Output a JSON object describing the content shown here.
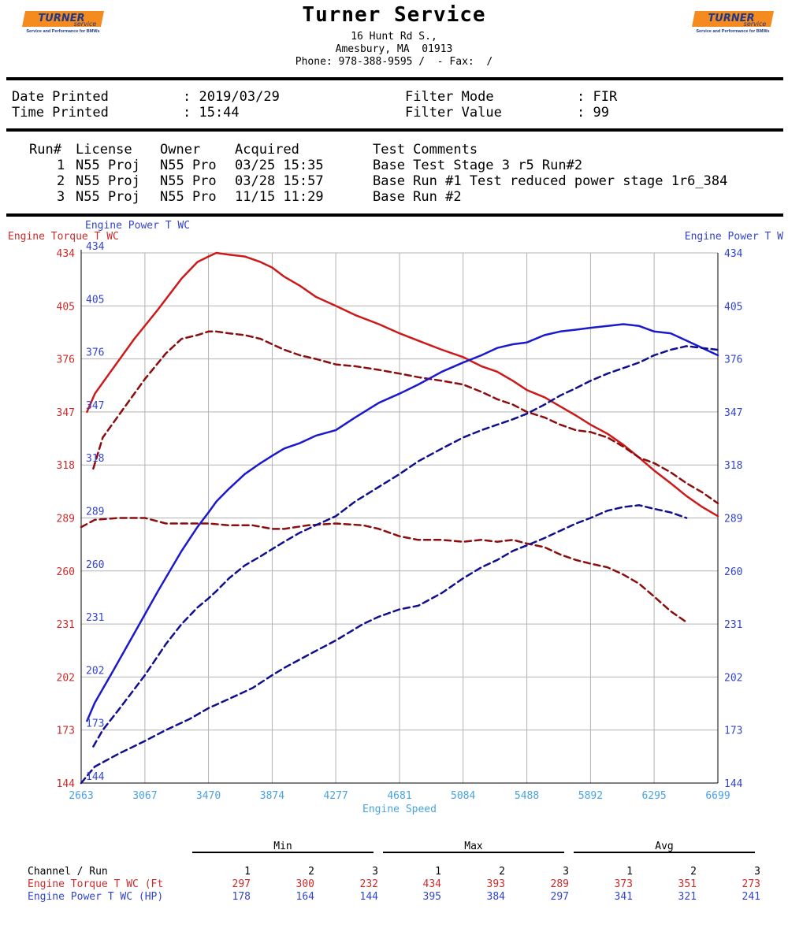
{
  "header": {
    "title": "Turner Service",
    "address_line1": "16 Hunt Rd S.,",
    "address_line2": "Amesbury, MA  01913",
    "phone_line": "Phone: 978-388-9595 /  - Fax:  /",
    "logo_text": "TURNER service",
    "logo_tagline": "Service and Performance for BMWs"
  },
  "info": {
    "date_label": "Date Printed",
    "date_value": ": 2019/03/29",
    "time_label": "Time Printed",
    "time_value": ": 15:44",
    "filter_mode_label": "Filter Mode",
    "filter_mode_value": ": FIR",
    "filter_value_label": "Filter Value",
    "filter_value_value": ": 99"
  },
  "runs": {
    "headers": [
      "Run#",
      "License",
      "Owner",
      "Acquired",
      "Test Comments"
    ],
    "rows": [
      {
        "run": "1",
        "license": "N55 Proj",
        "owner": "N55 Pro",
        "acquired": "03/25 15:35",
        "comments": "Base Test Stage 3 r5 Run#2"
      },
      {
        "run": "2",
        "license": "N55 Proj",
        "owner": "N55 Pro",
        "acquired": "03/28 15:57",
        "comments": "Base Run #1 Test reduced power stage 1r6_384"
      },
      {
        "run": "3",
        "license": "N55 Proj",
        "owner": "N55 Pro",
        "acquired": "11/15 11:29",
        "comments": "Base Run #2"
      }
    ]
  },
  "colors": {
    "torque": "#cc1a1a",
    "torque_dark": "#8b0d0d",
    "power": "#1a1acc",
    "power_dark": "#10108f",
    "torque_text": "#cc2b2b",
    "power_text": "#3344cc",
    "xaxis_text": "#4aa3e0",
    "grid": "#b3b3b3",
    "logo_orange": "#f58a1f",
    "logo_blue": "#1a3a8f"
  },
  "chart_data": {
    "type": "line",
    "xlabel": "Engine Speed",
    "y_left_label": "Engine Torque T WC",
    "y_right_label": "Engine Power T W",
    "y_right_label_top": "Engine Power T WC",
    "xlim": [
      2663,
      6699
    ],
    "ylim": [
      144,
      434
    ],
    "x_ticks": [
      "2663",
      "3067",
      "3470",
      "3874",
      "4277",
      "4681",
      "5084",
      "5488",
      "5892",
      "6295",
      "6699"
    ],
    "y_ticks": [
      "434",
      "405",
      "376",
      "347",
      "318",
      "289",
      "260",
      "231",
      "202",
      "173",
      "144"
    ],
    "grid": true,
    "series": [
      {
        "channel": "torque",
        "run": 1,
        "style": "solid",
        "x": [
          2700,
          2750,
          2850,
          3000,
          3150,
          3300,
          3400,
          3470,
          3520,
          3600,
          3700,
          3800,
          3874,
          3950,
          4050,
          4150,
          4277,
          4400,
          4550,
          4681,
          4800,
          4950,
          5084,
          5200,
          5300,
          5400,
          5488,
          5600,
          5700,
          5800,
          5892,
          6000,
          6100,
          6200,
          6295,
          6400,
          6500,
          6600,
          6699
        ],
        "y": [
          347,
          357,
          369,
          387,
          403,
          420,
          429,
          432,
          434,
          433,
          432,
          429,
          426,
          421,
          416,
          410,
          405,
          400,
          395,
          390,
          386,
          381,
          377,
          372,
          369,
          364,
          359,
          355,
          350,
          345,
          340,
          335,
          329,
          322,
          315,
          308,
          301,
          295,
          290
        ]
      },
      {
        "channel": "torque",
        "run": 2,
        "style": "dashed",
        "x": [
          2740,
          2800,
          2900,
          3067,
          3200,
          3300,
          3400,
          3470,
          3520,
          3600,
          3700,
          3800,
          3874,
          3950,
          4050,
          4150,
          4277,
          4400,
          4550,
          4681,
          4800,
          4950,
          5084,
          5200,
          5300,
          5400,
          5488,
          5600,
          5700,
          5800,
          5892,
          6000,
          6100,
          6200,
          6295,
          6400,
          6500,
          6600,
          6699
        ],
        "y": [
          316,
          333,
          345,
          365,
          379,
          387,
          389,
          391,
          391,
          390,
          389,
          387,
          384,
          381,
          378,
          376,
          373,
          372,
          370,
          368,
          366,
          364,
          362,
          358,
          354,
          351,
          347,
          344,
          340,
          337,
          336,
          333,
          328,
          322,
          319,
          314,
          308,
          303,
          297
        ]
      },
      {
        "channel": "torque",
        "run": 3,
        "style": "dashed",
        "x": [
          2663,
          2750,
          2900,
          3067,
          3200,
          3350,
          3470,
          3600,
          3750,
          3874,
          3950,
          4100,
          4277,
          4450,
          4550,
          4681,
          4800,
          4950,
          5084,
          5200,
          5300,
          5400,
          5488,
          5600,
          5700,
          5800,
          5892,
          6000,
          6100,
          6200,
          6295,
          6400,
          6500
        ],
        "y": [
          284,
          288,
          289,
          289,
          286,
          286,
          286,
          285,
          285,
          283,
          283,
          285,
          286,
          285,
          283,
          279,
          277,
          277,
          276,
          277,
          276,
          277,
          275,
          273,
          269,
          266,
          264,
          262,
          258,
          253,
          246,
          238,
          232
        ]
      },
      {
        "channel": "power",
        "run": 1,
        "style": "solid",
        "x": [
          2700,
          2750,
          2850,
          3000,
          3150,
          3300,
          3400,
          3470,
          3520,
          3600,
          3700,
          3800,
          3874,
          3950,
          4050,
          4150,
          4277,
          4400,
          4550,
          4681,
          4800,
          4950,
          5084,
          5200,
          5300,
          5400,
          5488,
          5600,
          5700,
          5800,
          5892,
          6000,
          6100,
          6200,
          6295,
          6400,
          6500,
          6600,
          6699
        ],
        "y": [
          178,
          188,
          203,
          226,
          249,
          271,
          284,
          292,
          298,
          305,
          313,
          319,
          323,
          327,
          330,
          334,
          337,
          344,
          352,
          357,
          362,
          369,
          374,
          378,
          382,
          384,
          385,
          389,
          391,
          392,
          393,
          394,
          395,
          394,
          391,
          390,
          386,
          382,
          378
        ]
      },
      {
        "channel": "power",
        "run": 2,
        "style": "dashed",
        "x": [
          2740,
          2800,
          2900,
          3067,
          3200,
          3300,
          3400,
          3470,
          3520,
          3600,
          3700,
          3800,
          3874,
          3950,
          4050,
          4150,
          4277,
          4400,
          4550,
          4681,
          4800,
          4950,
          5084,
          5200,
          5300,
          5400,
          5488,
          5600,
          5700,
          5800,
          5892,
          6000,
          6100,
          6200,
          6295,
          6400,
          6500,
          6600,
          6699
        ],
        "y": [
          164,
          173,
          184,
          203,
          220,
          231,
          240,
          245,
          249,
          256,
          263,
          268,
          272,
          276,
          281,
          285,
          290,
          298,
          306,
          313,
          320,
          327,
          333,
          337,
          340,
          343,
          346,
          351,
          356,
          360,
          364,
          368,
          371,
          374,
          378,
          381,
          383,
          382,
          381
        ]
      },
      {
        "channel": "power",
        "run": 3,
        "style": "dashed",
        "x": [
          2663,
          2750,
          2900,
          3067,
          3200,
          3350,
          3470,
          3600,
          3750,
          3874,
          3950,
          4100,
          4277,
          4450,
          4550,
          4681,
          4800,
          4950,
          5084,
          5200,
          5300,
          5400,
          5488,
          5600,
          5700,
          5800,
          5892,
          6000,
          6100,
          6200,
          6295,
          6400,
          6500
        ],
        "y": [
          144,
          153,
          160,
          167,
          173,
          179,
          185,
          190,
          196,
          203,
          207,
          214,
          222,
          231,
          235,
          239,
          241,
          248,
          256,
          262,
          266,
          271,
          274,
          278,
          282,
          286,
          289,
          293,
          295,
          296,
          294,
          292,
          289
        ]
      }
    ]
  },
  "stats": {
    "group_labels": [
      "Min",
      "Max",
      "Avg"
    ],
    "channel_header": "Channel / Run",
    "run_numbers": [
      "1",
      "2",
      "3",
      "1",
      "2",
      "3",
      "1",
      "2",
      "3"
    ],
    "rows": [
      {
        "label": "Engine Torque T WC (Ft",
        "values": [
          "297",
          "300",
          "232",
          "434",
          "393",
          "289",
          "373",
          "351",
          "273"
        ]
      },
      {
        "label": "Engine Power T WC (HP)",
        "values": [
          "178",
          "164",
          "144",
          "395",
          "384",
          "297",
          "341",
          "321",
          "241"
        ]
      }
    ]
  }
}
